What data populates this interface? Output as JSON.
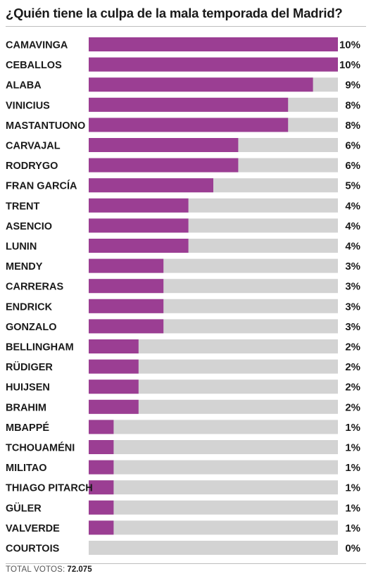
{
  "title": "¿Quién tiene la culpa de la mala temporada del Madrid?",
  "footer": {
    "label": "TOTAL VOTOS:",
    "value": "72.075"
  },
  "colors": {
    "bar": "#9b3e93",
    "track": "#d3d3d3"
  },
  "chart_data": {
    "type": "bar",
    "orientation": "horizontal",
    "title": "¿Quién tiene la culpa de la mala temporada del Madrid?",
    "xlabel": "",
    "ylabel": "",
    "xlim": [
      0,
      10
    ],
    "grid": false,
    "categories": [
      "CAMAVINGA",
      "CEBALLOS",
      "ALABA",
      "VINICIUS",
      "MASTANTUONO",
      "CARVAJAL",
      "RODRYGO",
      "FRAN GARCÍA",
      "TRENT",
      "ASENCIO",
      "LUNIN",
      "MENDY",
      "CARRERAS",
      "ENDRICK",
      "GONZALO",
      "BELLINGHAM",
      "RÜDIGER",
      "HUIJSEN",
      "BRAHIM",
      "MBAPPÉ",
      "TCHOUAMÉNI",
      "MILITAO",
      "THIAGO PITARCH",
      "GÜLER",
      "VALVERDE",
      "COURTOIS"
    ],
    "values": [
      10,
      10,
      9,
      8,
      8,
      6,
      6,
      5,
      4,
      4,
      4,
      3,
      3,
      3,
      3,
      2,
      2,
      2,
      2,
      1,
      1,
      1,
      1,
      1,
      1,
      0
    ],
    "value_labels": [
      "10%",
      "10%",
      "9%",
      "8%",
      "8%",
      "6%",
      "6%",
      "5%",
      "4%",
      "4%",
      "4%",
      "3%",
      "3%",
      "3%",
      "3%",
      "2%",
      "2%",
      "2%",
      "2%",
      "1%",
      "1%",
      "1%",
      "1%",
      "1%",
      "1%",
      "0%"
    ]
  }
}
